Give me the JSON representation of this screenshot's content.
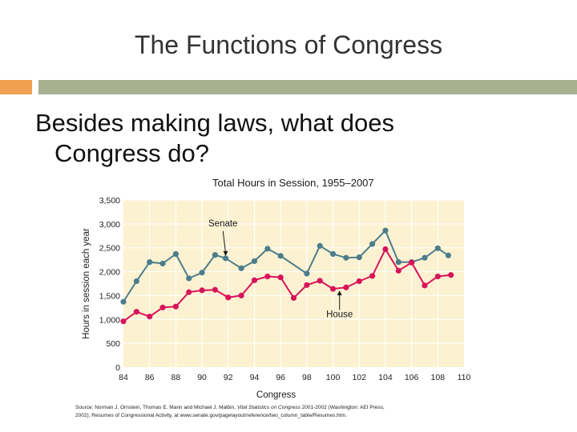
{
  "slide": {
    "title": "The Functions of Congress",
    "question_line1": "Besides making laws, what does",
    "question_line2": "Congress do?",
    "source_part1": "Source: Norman J. Ornstein, Thomas E. Mann and Michael J. Malbin, ",
    "source_italic": "Vital Statistics on Congress",
    "source_part2": " 2001-2002 (Washington: AEI Press, 2002); Resumes of Congressional Activity, at www.senate.gov/pagelayout/reference/two_column_table/Resumes.htm."
  },
  "colors": {
    "accent_orange": "#F0A050",
    "accent_gray": "#A8B090",
    "plot_bg": "#FCF2D2",
    "grid": "#FFFFFF",
    "senate": "#4C7D8C",
    "house": "#D8145A"
  },
  "chart_data": {
    "type": "line",
    "title": "Total Hours in Session, 1955–2007",
    "xlabel": "Congress",
    "ylabel": "Hours in session each year",
    "xlim": [
      84,
      110
    ],
    "ylim": [
      0,
      3500
    ],
    "x_ticks": [
      84,
      86,
      88,
      90,
      92,
      94,
      96,
      98,
      100,
      102,
      104,
      106,
      108,
      110
    ],
    "y_ticks": [
      0,
      500,
      1000,
      1500,
      2000,
      2500,
      3000,
      3500
    ],
    "y_tick_labels": [
      "0",
      "500",
      "1,000",
      "1,500",
      "2,000",
      "2,500",
      "3,000",
      "3,500"
    ],
    "series": [
      {
        "name": "Senate",
        "x": [
          84,
          85,
          86,
          87,
          88,
          89,
          90,
          91,
          91.8,
          93,
          94,
          95,
          96,
          98,
          99,
          100,
          101,
          102,
          103,
          104,
          105,
          106,
          107,
          108,
          108.8
        ],
        "values": [
          1370,
          1800,
          2200,
          2170,
          2370,
          1860,
          1980,
          2350,
          2280,
          2070,
          2220,
          2480,
          2330,
          1960,
          2540,
          2370,
          2290,
          2300,
          2580,
          2860,
          2200,
          2200,
          2290,
          2490,
          2340
        ]
      },
      {
        "name": "House",
        "x": [
          84,
          85,
          86,
          87,
          88,
          89,
          90,
          91,
          92,
          93,
          94,
          95,
          96,
          97,
          98,
          99,
          100,
          101,
          102,
          103,
          104,
          105,
          106,
          107,
          108,
          109
        ],
        "values": [
          960,
          1160,
          1060,
          1250,
          1270,
          1570,
          1610,
          1620,
          1460,
          1500,
          1820,
          1900,
          1880,
          1450,
          1720,
          1810,
          1640,
          1670,
          1800,
          1910,
          2470,
          2020,
          2190,
          1710,
          1900,
          1930
        ]
      }
    ],
    "annotations": [
      "Senate",
      "House"
    ]
  }
}
